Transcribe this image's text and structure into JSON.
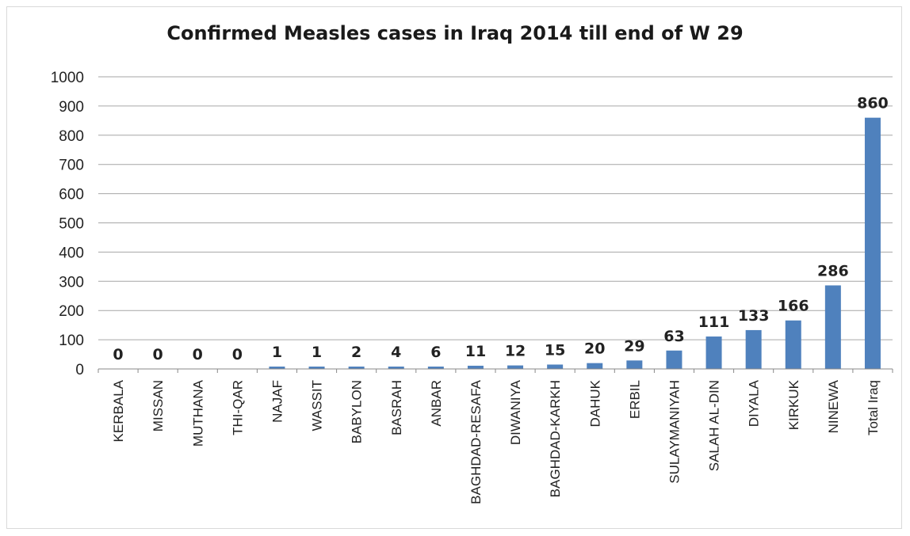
{
  "chart_data": {
    "type": "bar",
    "title": "Confirmed Measles cases in Iraq 2014 till end of W 29",
    "xlabel": "",
    "ylabel": "",
    "ylim": [
      0,
      1000
    ],
    "yticks": [
      0,
      100,
      200,
      300,
      400,
      500,
      600,
      700,
      800,
      900,
      1000
    ],
    "grid": true,
    "legend": "none",
    "bar_color": "#4f81bd",
    "categories": [
      "KERBALA",
      "MISSAN",
      "MUTHANA",
      "THI-QAR",
      "NAJAF",
      "WASSIT",
      "BABYLON",
      "BASRAH",
      "ANBAR",
      "BAGHDAD-RESAFA",
      "DIWANIYA",
      "BAGHDAD-KARKH",
      "DAHUK",
      "ERBIL",
      "SULAYMANIYAH",
      "SALAH AL-DIN",
      "DIYALA",
      "KIRKUK",
      "NINEWA",
      "Total Iraq"
    ],
    "values": [
      0,
      0,
      0,
      0,
      1,
      1,
      2,
      4,
      6,
      11,
      12,
      15,
      20,
      29,
      63,
      111,
      133,
      166,
      286,
      860
    ]
  }
}
